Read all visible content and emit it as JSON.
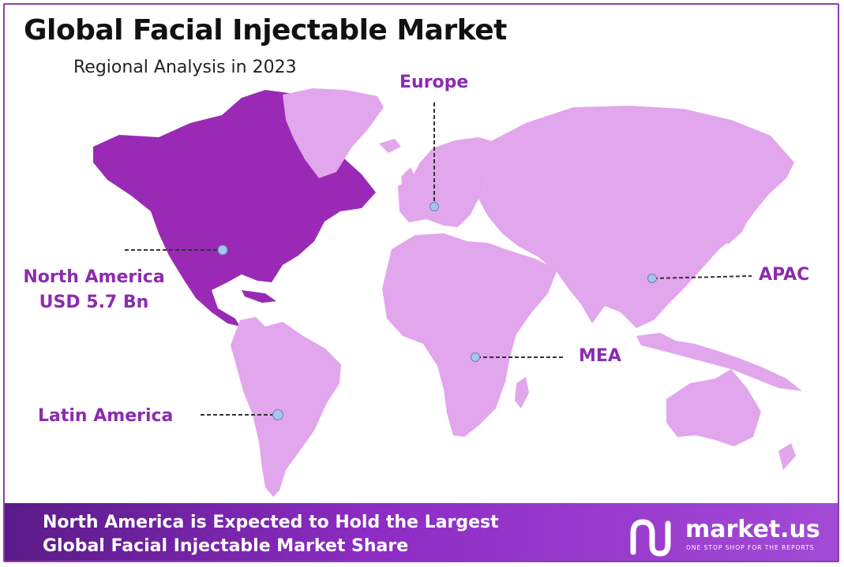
{
  "header": {
    "title": "Global Facial Injectable Market",
    "subtitle": "Regional Analysis in 2023"
  },
  "regions": {
    "north_america": {
      "name": "North America",
      "value": "USD 5.7 Bn"
    },
    "europe": {
      "name": "Europe"
    },
    "apac": {
      "name": "APAC"
    },
    "mea": {
      "name": "MEA"
    },
    "latin_america": {
      "name": "Latin America"
    }
  },
  "colors": {
    "highlight_region": "#9a2ab5",
    "other_regions": "#e2a6ec",
    "label": "#8c2bb0",
    "marker": "#a8c4ee",
    "border": "#8e3fa8"
  },
  "footer": {
    "line1": "North America is Expected to Hold the Largest",
    "line2": "Global Facial Injectable Market Share",
    "logo": {
      "brand": "market.us",
      "tagline": "ONE STOP SHOP FOR THE REPORTS"
    }
  }
}
